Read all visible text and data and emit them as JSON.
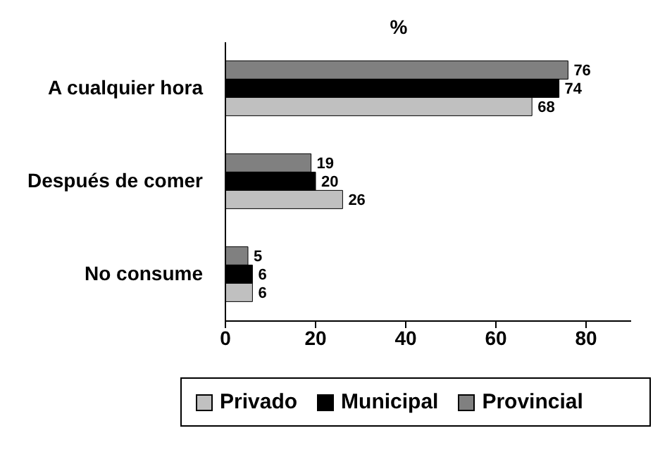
{
  "chart_data": {
    "type": "bar",
    "orientation": "horizontal",
    "title": "%",
    "categories": [
      "A cualquier hora",
      "Después de comer",
      "No consume"
    ],
    "series": [
      {
        "name": "Privado",
        "color": "#c0c0c0",
        "values": [
          68,
          26,
          6
        ]
      },
      {
        "name": "Municipal",
        "color": "#000000",
        "values": [
          74,
          20,
          6
        ]
      },
      {
        "name": "Provincial",
        "color": "#808080",
        "values": [
          76,
          19,
          5
        ]
      }
    ],
    "xlim": [
      0,
      90
    ],
    "xticks": [
      0,
      20,
      40,
      60,
      80
    ],
    "grid": false,
    "legend": "bottom",
    "data_labels": true
  }
}
